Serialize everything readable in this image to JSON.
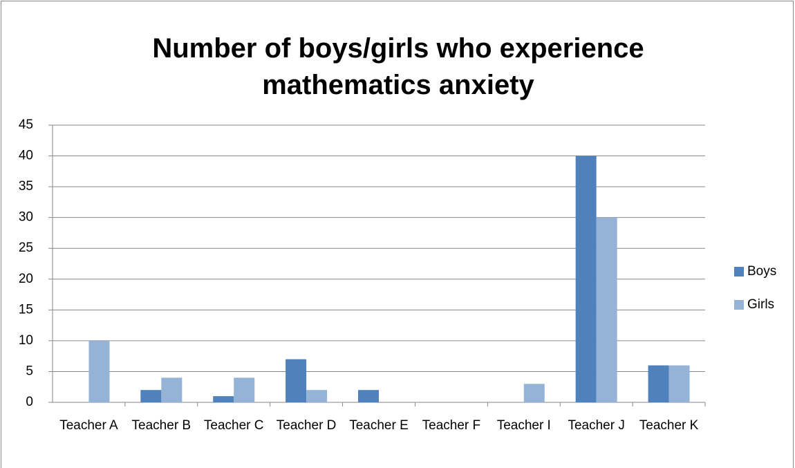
{
  "chart_data": {
    "type": "bar",
    "title": "Number of boys/girls who experience mathematics anxiety",
    "categories": [
      "Teacher A",
      "Teacher B",
      "Teacher C",
      "Teacher D",
      "Teacher E",
      "Teacher F",
      "Teacher I",
      "Teacher J",
      "Teacher K"
    ],
    "series": [
      {
        "name": "Boys",
        "color": "#4f81bd",
        "values": [
          0,
          2,
          1,
          7,
          2,
          0,
          0,
          40,
          6
        ]
      },
      {
        "name": "Girls",
        "color": "#95b3d7",
        "values": [
          10,
          4,
          4,
          2,
          0,
          0,
          3,
          30,
          6
        ]
      }
    ],
    "ylim": [
      0,
      45
    ],
    "yticks": [
      0,
      5,
      10,
      15,
      20,
      25,
      30,
      35,
      40,
      45
    ],
    "grid": true,
    "legend": "right"
  }
}
